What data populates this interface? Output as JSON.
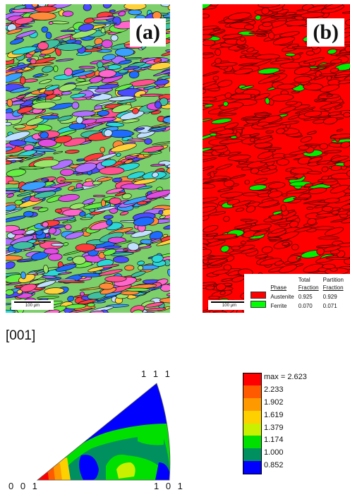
{
  "panel_a": {
    "label": "(a)",
    "scale_bar": "100 µm"
  },
  "panel_b": {
    "label": "(b)",
    "scale_bar": "100 µm",
    "phase_table": {
      "headers": [
        "Phase",
        "Total Fraction",
        "Partition Fraction"
      ],
      "header_line1": [
        "",
        "Total",
        "Partition"
      ],
      "header_line2": [
        "Phase",
        "Fraction",
        "Fraction"
      ],
      "rows": [
        {
          "phase": "Austenite",
          "color": "#ff0000",
          "total": "0.925",
          "partition": "0.929"
        },
        {
          "phase": "Ferrite",
          "color": "#00ff00",
          "total": "0.070",
          "partition": "0.071"
        }
      ]
    }
  },
  "ipf": {
    "direction_label": "[001]",
    "corner_labels": {
      "top": "1 1 1",
      "left": "0 0 1",
      "right": "1 0 1"
    },
    "legend": [
      {
        "label": "max = 2.623",
        "color": "#ff0000"
      },
      {
        "label": "2.233",
        "color": "#ff5a00"
      },
      {
        "label": "1.902",
        "color": "#ff9900"
      },
      {
        "label": "1.619",
        "color": "#ffd000"
      },
      {
        "label": "1.379",
        "color": "#c8f000"
      },
      {
        "label": "1.174",
        "color": "#00e000"
      },
      {
        "label": "1.000",
        "color": "#009060"
      },
      {
        "label": "0.852",
        "color": "#0000ff"
      }
    ]
  }
}
